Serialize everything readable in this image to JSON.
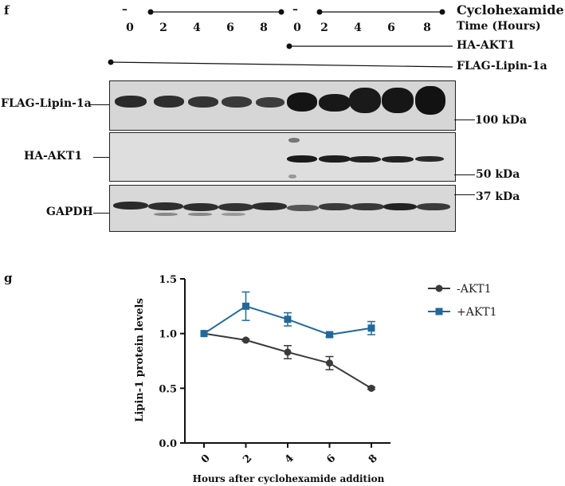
{
  "panel_f": {
    "letter": "f",
    "cycloheximide_label": "Cyclohexamide",
    "time_label": "Time (Hours)",
    "minus_left": "–",
    "minus_right": "–",
    "lanes": [
      "0",
      "2",
      "4",
      "6",
      "8",
      "0",
      "2",
      "4",
      "6",
      "8"
    ],
    "ha_akt1_label": "HA-AKT1",
    "flag_lipin_label": "FLAG-Lipin-1a",
    "blot_labels": {
      "flag": "FLAG-Lipin-1a",
      "ha": "HA-AKT1",
      "gapdh": "GAPDH"
    },
    "markers": {
      "kda100": "100 kDa",
      "kda50": "50 kDa",
      "kda37": "37 kDa"
    }
  },
  "panel_g": {
    "letter": "g"
  },
  "chart_data": {
    "type": "line",
    "title": "",
    "xlabel": "Hours after cyclohexamide addition",
    "ylabel": "Lipin-1 protein levels",
    "x": [
      0,
      2,
      4,
      6,
      8
    ],
    "xticklabels": [
      "0",
      "2",
      "4",
      "6",
      "8"
    ],
    "ylim": [
      0,
      1.5
    ],
    "yticks": [
      0,
      0.5,
      1.0,
      1.5
    ],
    "yticklabels": [
      "0.0",
      "0.5",
      "1.0",
      "1.5"
    ],
    "grid": false,
    "legend_position": "top-right",
    "series": [
      {
        "name": "-AKT1",
        "color": "#3a3a3a",
        "marker": "circle",
        "values": [
          1.0,
          0.94,
          0.83,
          0.73,
          0.5
        ],
        "errors": [
          0.0,
          0.01,
          0.06,
          0.06,
          0.01
        ]
      },
      {
        "name": "+AKT1",
        "color": "#24689a",
        "marker": "square",
        "values": [
          1.0,
          1.25,
          1.13,
          0.99,
          1.05
        ],
        "errors": [
          0.0,
          0.13,
          0.06,
          0.02,
          0.06
        ]
      }
    ]
  }
}
